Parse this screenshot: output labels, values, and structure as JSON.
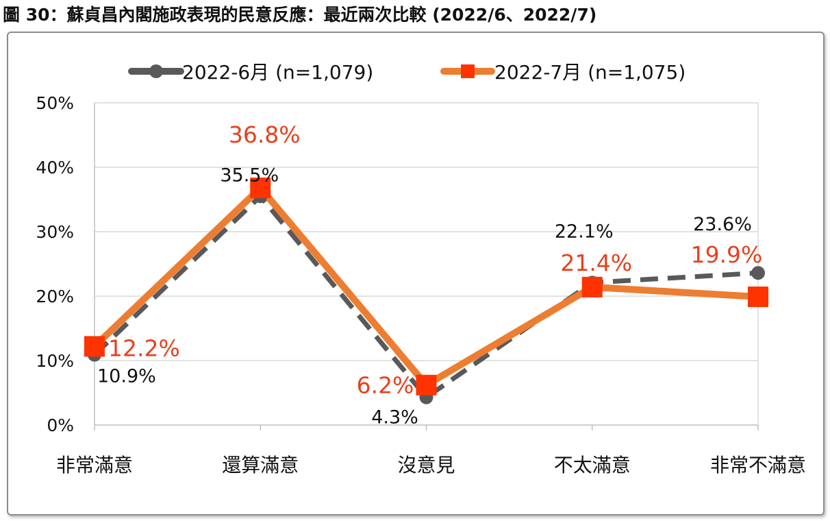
{
  "figure_title": "圖 30：蘇貞昌內閣施政表現的民意反應：最近兩次比較  (2022/6、2022/7)",
  "chart_data": {
    "type": "line",
    "categories": [
      "非常滿意",
      "還算滿意",
      "沒意見",
      "不太滿意",
      "非常不滿意"
    ],
    "ylim": [
      0,
      50
    ],
    "yticks": [
      0,
      10,
      20,
      30,
      40,
      50
    ],
    "ytick_labels": [
      "0%",
      "10%",
      "20%",
      "30%",
      "40%",
      "50%"
    ],
    "grid": true,
    "legend_position": "top",
    "series": [
      {
        "name": "2022-6月  (n=1,079)",
        "values": [
          10.9,
          35.5,
          4.3,
          22.1,
          23.6
        ],
        "labels": [
          "10.9%",
          "35.5%",
          "4.3%",
          "22.1%",
          "23.6%"
        ],
        "color": "#595959",
        "label_color": "#111111",
        "style": "dashed",
        "marker": "circle"
      },
      {
        "name": "2022-7月  (n=1,075)",
        "values": [
          12.2,
          36.8,
          6.2,
          21.4,
          19.9
        ],
        "labels": [
          "12.2%",
          "36.8%",
          "6.2%",
          "21.4%",
          "19.9%"
        ],
        "color": "#ED7D31",
        "label_color": "#E8401C",
        "marker_color": "#FF3300",
        "style": "solid",
        "marker": "square"
      }
    ]
  }
}
